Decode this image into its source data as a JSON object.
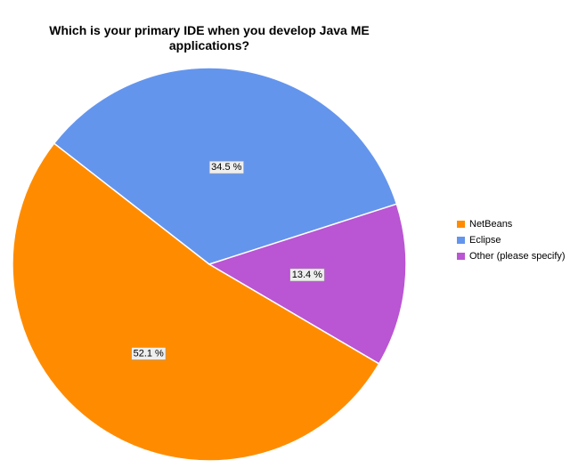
{
  "chart_data": {
    "type": "pie",
    "title": "Which is your primary IDE when you develop Java ME applications?",
    "categories": [
      "NetBeans",
      "Eclipse",
      "Other (please specify)"
    ],
    "values": [
      52.1,
      34.5,
      13.4
    ],
    "value_labels": [
      "52.1 %",
      "34.5 %",
      "13.4 %"
    ],
    "colors": [
      "#ff8c00",
      "#6495ed",
      "#ba55d3"
    ],
    "legend": "right"
  }
}
